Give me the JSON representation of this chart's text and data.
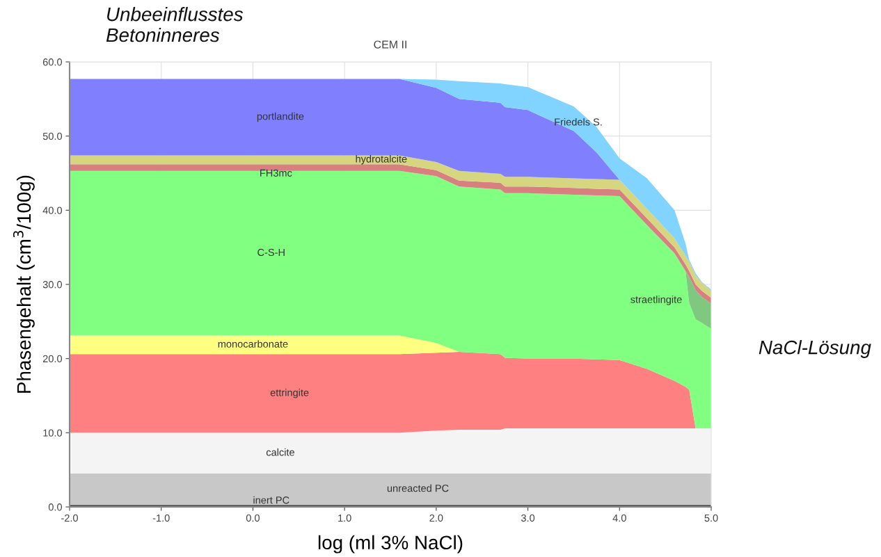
{
  "chart_data": {
    "type": "area",
    "stacked": true,
    "title": "CEM II",
    "xlabel": "log (ml 3% NaCl)",
    "ylabel": "Phasengehalt (cm$^{3}$/100g)",
    "annotations": [
      "Unbeeinflusstes\nBetoninneres",
      "NaCl-Lösung"
    ],
    "x": [
      -2,
      1.6,
      2.0,
      2.25,
      2.7,
      2.75,
      3.0,
      3.5,
      3.75,
      4.0,
      4.3,
      4.6,
      4.72,
      4.76,
      4.83,
      4.9,
      5.0
    ],
    "series": [
      {
        "name": "inert PC",
        "color": "#606060",
        "values": [
          0.3,
          0.3,
          0.3,
          0.3,
          0.3,
          0.3,
          0.3,
          0.3,
          0.3,
          0.3,
          0.3,
          0.3,
          0.3,
          0.3,
          0.3,
          0.3,
          0.3
        ]
      },
      {
        "name": "unreacted PC",
        "color": "#c8c8c8",
        "values": [
          4.2,
          4.2,
          4.2,
          4.2,
          4.2,
          4.2,
          4.2,
          4.2,
          4.2,
          4.2,
          4.2,
          4.2,
          4.2,
          4.2,
          4.2,
          4.2,
          4.2
        ]
      },
      {
        "name": "calcite",
        "color": "#f4f4f4",
        "values": [
          5.5,
          5.5,
          5.8,
          5.9,
          5.9,
          6.1,
          6.1,
          6.1,
          6.1,
          6.1,
          6.1,
          6.1,
          6.1,
          6.1,
          6.1,
          6.1,
          6.1
        ]
      },
      {
        "name": "ettringite",
        "color": "#ff8080",
        "values": [
          10.6,
          10.6,
          10.5,
          10.5,
          10.2,
          9.5,
          9.4,
          9.4,
          9.3,
          9.2,
          8.0,
          6.4,
          5.6,
          5.2,
          0,
          null,
          null
        ]
      },
      {
        "name": "monocarbonate",
        "color": "#ffff80",
        "values": [
          2.5,
          2.5,
          1.3,
          0,
          null,
          null,
          null,
          null,
          null,
          null,
          null,
          null,
          null,
          null,
          null,
          null,
          null
        ]
      },
      {
        "name": "C-S-H",
        "color": "#80ff80",
        "values": [
          22.2,
          22.2,
          22.5,
          22.3,
          22.2,
          22.2,
          22.3,
          22.1,
          22.1,
          22.1,
          19.4,
          17.2,
          15.6,
          11.7,
          14.7,
          14.2,
          13.4
        ]
      },
      {
        "name": "straetlingite",
        "color": "#80c880",
        "values": [
          null,
          null,
          null,
          null,
          null,
          null,
          null,
          null,
          null,
          null,
          null,
          null,
          0,
          3.5,
          3.9,
          3.5,
          3.4
        ]
      },
      {
        "name": "FH3mc",
        "color": "#d88080",
        "values": [
          0.9,
          0.9,
          0.8,
          0.8,
          0.9,
          0.9,
          0.9,
          0.9,
          0.9,
          0.9,
          0.9,
          0.8,
          0.9,
          0.8,
          0.8,
          0.8,
          0.8
        ]
      },
      {
        "name": "hydrotalcite",
        "color": "#d6d680",
        "values": [
          1.2,
          1.2,
          1.1,
          1.3,
          1.2,
          1.3,
          1.3,
          1.3,
          1.3,
          1.3,
          1.3,
          1.2,
          1.2,
          1.2,
          1.2,
          1.1,
          0.9
        ]
      },
      {
        "name": "portlandite",
        "color": "#8080ff",
        "values": [
          10.3,
          10.3,
          10.0,
          9.7,
          9.6,
          9.4,
          9.0,
          6.4,
          3.6,
          0,
          null,
          null,
          null,
          null,
          null,
          null,
          null
        ]
      },
      {
        "name": "Friedels S.",
        "color": "#80d4ff",
        "values": [
          null,
          0,
          1.1,
          2.4,
          2.6,
          3.1,
          3.1,
          3.3,
          3.4,
          2.9,
          4.1,
          3.8,
          1.6,
          0.3,
          0.3,
          0.1,
          0.2
        ]
      }
    ],
    "xlim": [
      -2,
      5
    ],
    "ylim": [
      0,
      60
    ],
    "xticks": [
      {
        "value": -2,
        "label": "-2.0"
      },
      {
        "value": -1,
        "label": "-1.0"
      },
      {
        "value": 0,
        "label": "0.0"
      },
      {
        "value": 1,
        "label": "1.0"
      },
      {
        "value": 2,
        "label": "2.0"
      },
      {
        "value": 3,
        "label": "3.0"
      },
      {
        "value": 4,
        "label": "4.0"
      },
      {
        "value": 5,
        "label": "5.0"
      }
    ],
    "yticks": [
      {
        "value": 0,
        "label": "0.0"
      },
      {
        "value": 10,
        "label": "10.0"
      },
      {
        "value": 20,
        "label": "20.0"
      },
      {
        "value": 30,
        "label": "30.0"
      },
      {
        "value": 40,
        "label": "40.0"
      },
      {
        "value": 50,
        "label": "50.0"
      },
      {
        "value": 60,
        "label": "60.0"
      }
    ],
    "grid": true,
    "legend": false
  }
}
